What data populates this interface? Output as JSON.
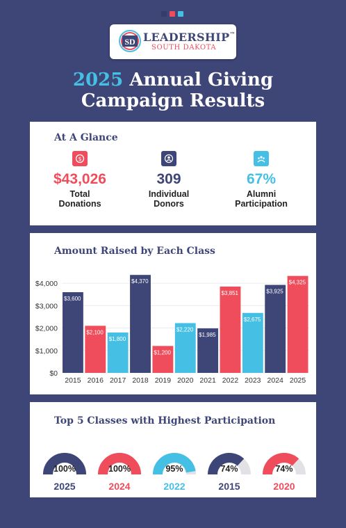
{
  "colors": {
    "navy": "#3e4577",
    "red": "#ef4c5c",
    "cyan": "#45c0e4",
    "track": "#e2e2e6"
  },
  "logo": {
    "mark": "SD",
    "name": "LEADERSHIP",
    "trademark": "™",
    "subtitle": "SOUTH DAKOTA"
  },
  "header": {
    "title_year": "2025",
    "title_line1_rest": "Annual Giving",
    "title_line2": "Campaign Results"
  },
  "glance": {
    "title": "At A Glance",
    "stats": [
      {
        "icon": "dollar-icon",
        "value": "$43,026",
        "label1": "Total",
        "label2": "Donations",
        "color": "#ef4c5c"
      },
      {
        "icon": "donor-icon",
        "value": "309",
        "label1": "Individual",
        "label2": "Donors",
        "color": "#3e4577"
      },
      {
        "icon": "alumni-icon",
        "value": "67%",
        "label1": "Alumni",
        "label2": "Participation",
        "color": "#45c0e4"
      }
    ]
  },
  "chart_data": [
    {
      "type": "bar",
      "title": "Amount Raised by Each Class",
      "categories": [
        "2015",
        "2016",
        "2017",
        "2018",
        "2019",
        "2020",
        "2021",
        "2022",
        "2023",
        "2024",
        "2025"
      ],
      "values": [
        3600,
        2100,
        1800,
        4370,
        1200,
        2220,
        1985,
        3851,
        2675,
        3925,
        4325
      ],
      "value_labels": [
        "$3,600",
        "$2,100",
        "$1,800",
        "$4,370",
        "$1,200",
        "$2,220",
        "$1,985",
        "$3,851",
        "$2,675",
        "$3,925",
        "$4,325"
      ],
      "bar_colors": [
        "#3e4577",
        "#ef4c5c",
        "#45c0e4",
        "#3e4577",
        "#ef4c5c",
        "#45c0e4",
        "#3e4577",
        "#ef4c5c",
        "#45c0e4",
        "#3e4577",
        "#ef4c5c"
      ],
      "yticks": [
        0,
        1000,
        2000,
        3000,
        4000
      ],
      "ytick_labels": [
        "$0",
        "$1,000",
        "$2,000",
        "$3,000",
        "$4,000"
      ],
      "ylim": [
        0,
        4500
      ],
      "grid": true
    },
    {
      "type": "gauge",
      "title": "Top 5 Classes with Highest Participation",
      "categories": [
        "2025",
        "2024",
        "2022",
        "2015",
        "2020"
      ],
      "values": [
        100,
        100,
        95,
        74,
        74
      ],
      "value_labels": [
        "100%",
        "100%",
        "95%",
        "74%",
        "74%"
      ],
      "colors": [
        "#3e4577",
        "#ef4c5c",
        "#45c0e4",
        "#3e4577",
        "#ef4c5c"
      ]
    }
  ]
}
